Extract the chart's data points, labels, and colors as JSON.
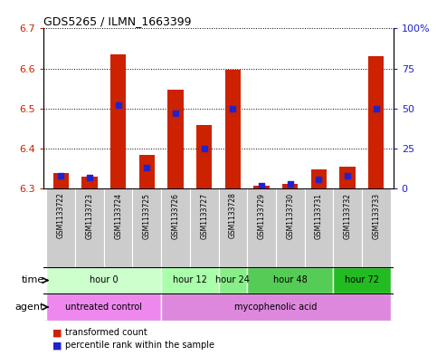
{
  "title": "GDS5265 / ILMN_1663399",
  "samples": [
    "GSM1133722",
    "GSM1133723",
    "GSM1133724",
    "GSM1133725",
    "GSM1133726",
    "GSM1133727",
    "GSM1133728",
    "GSM1133729",
    "GSM1133730",
    "GSM1133731",
    "GSM1133732",
    "GSM1133733"
  ],
  "transformed_count": [
    6.34,
    6.33,
    6.635,
    6.385,
    6.548,
    6.458,
    6.598,
    6.308,
    6.313,
    6.348,
    6.355,
    6.63
  ],
  "percentile_rank": [
    8,
    7,
    52,
    13,
    47,
    25,
    50,
    2,
    3,
    6,
    8,
    50
  ],
  "ylim_left": [
    6.3,
    6.7
  ],
  "ylim_right": [
    0,
    100
  ],
  "yticks_left": [
    6.3,
    6.4,
    6.5,
    6.6,
    6.7
  ],
  "yticks_right": [
    0,
    25,
    50,
    75,
    100
  ],
  "baseline": 6.3,
  "bar_color": "#cc2200",
  "dot_color": "#2222cc",
  "bar_width": 0.55,
  "time_groups": [
    {
      "label": "hour 0",
      "indices": [
        0,
        1,
        2,
        3
      ],
      "color": "#ccffcc"
    },
    {
      "label": "hour 12",
      "indices": [
        4,
        5
      ],
      "color": "#aaffaa"
    },
    {
      "label": "hour 24",
      "indices": [
        6
      ],
      "color": "#88ee88"
    },
    {
      "label": "hour 48",
      "indices": [
        7,
        8,
        9
      ],
      "color": "#55cc55"
    },
    {
      "label": "hour 72",
      "indices": [
        10,
        11
      ],
      "color": "#22bb22"
    }
  ],
  "agent_groups": [
    {
      "label": "untreated control",
      "indices": [
        0,
        1,
        2,
        3
      ],
      "color": "#ee88ee"
    },
    {
      "label": "mycophenolic acid",
      "indices": [
        4,
        5,
        6,
        7,
        8,
        9,
        10,
        11
      ],
      "color": "#dd88dd"
    }
  ],
  "legend_red": "transformed count",
  "legend_blue": "percentile rank within the sample",
  "label_time": "time",
  "label_agent": "agent",
  "left_tick_color": "#cc2200",
  "right_tick_color": "#2222cc",
  "sample_bg": "#cccccc",
  "plot_bg": "#ffffff",
  "grid_style": "dotted"
}
